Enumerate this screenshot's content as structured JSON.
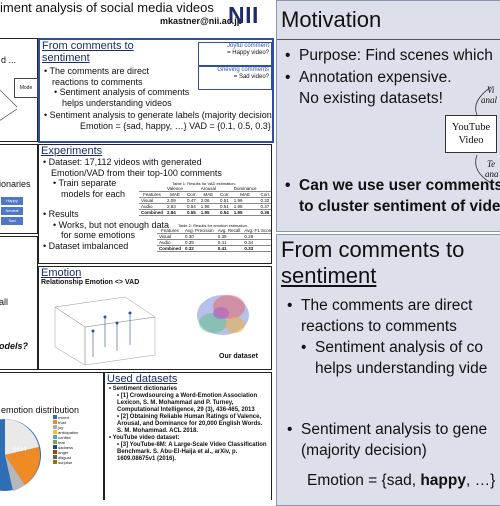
{
  "poster": {
    "title": "iment analysis of social media videos",
    "email": "mkastner@nii.ac.jp",
    "logo": "NII",
    "left_strip": {
      "top_text": "d ...",
      "mode_box": "Mode",
      "dictionaries_label": "ionaries",
      "dict_boxes": [
        "Happy",
        "Neutral",
        "Sad"
      ],
      "all_text": "all",
      "models_text": "odels?",
      "emotion_dist_label": "emotion distribution",
      "legend": [
        "mixed",
        "trust",
        "joy",
        "anticipation",
        "conflict",
        "fear",
        "sadness",
        "anger",
        "disgust",
        "surprise"
      ],
      "pie_value": "6614"
    },
    "comments": {
      "heading_line1": "From comments to",
      "heading_line2": "sentiment",
      "bullet1_l1": "The comments are direct",
      "bullet1_l2": "reactions to comments",
      "sub1_l1": "Sentiment analysis of comments",
      "sub1_l2": "helps understanding videos",
      "bullet2": "Sentiment analysis to generate labels (majority decision)",
      "formula": "Emotion = {sad, happy, …}    VAD = {0.1, 0.5, 0.3}",
      "joyful": "Joyful comment",
      "happy_q": "= Happy video?",
      "grieving": "Grieving comments",
      "sad_q": "= Sad video?"
    },
    "experiments": {
      "heading": "Experiments",
      "b1_l1": "Dataset: 17,112 videos with generated",
      "b1_l2": "Emotion/VAD from their top-100 comments",
      "sub_l1": "Train separate",
      "sub_l2": "models for each",
      "results": "Results",
      "sub2_l1": "Works, but not enough data",
      "sub2_l2": "for some emotions",
      "b3": "Dataset imbalanced",
      "table1_caption": "Table 1: Results for VAD estimation.",
      "table1_head": [
        "",
        "Valence",
        "",
        "Arousal",
        "",
        "Dominance",
        ""
      ],
      "table1_sub": [
        "Features",
        "MAE",
        "Corr.",
        "MAE",
        "Corr.",
        "MAE",
        "Corr."
      ],
      "table1_rows": [
        [
          "Visual",
          "2.09",
          "0.47",
          "2.06",
          "0.51",
          "1.96",
          "0.32"
        ],
        [
          "Audio",
          "2.83",
          "0.54",
          "1.96",
          "0.51",
          "1.96",
          "0.37"
        ],
        [
          "Combined",
          "2.84",
          "0.55",
          "1.95",
          "0.54",
          "1.95",
          "0.36"
        ]
      ],
      "table2_caption": "Table 2: Results for emotion estimation.",
      "table2_sub": [
        "Features",
        "Avg. Precision",
        "Avg. Recall",
        "Avg. F1 Score"
      ],
      "table2_rows": [
        [
          "Visual",
          "0.30",
          "0.39",
          "0.28"
        ],
        [
          "Audio",
          "0.39",
          "0.41",
          "0.34"
        ],
        [
          "Combined",
          "0.32",
          "0.41",
          "0.33"
        ]
      ]
    },
    "emotion": {
      "heading": "Emotion",
      "subheading": "Relationship Emotion <> VAD",
      "our_dataset": "Our dataset"
    },
    "used": {
      "heading": "Used datasets",
      "b1": "Sentiment dictionaries",
      "r1": "[1] Crowdsourcing a Word-Emotion Association Lexicon, S. M. Mohammad and P. Turney, Computational Intelligence, 29 (3), 436-465, 2013",
      "r2": "[2] Obtaining Reliable Human Ratings of Valence, Arousal, and Dominance for 20,000 English Words. S. M. Mohammad. ACL 2018.",
      "b2": "YouTube video dataset:",
      "r3": "[3] YouTube-8M: A Large-Scale Video Classification Benchmark. S. Abu-El-Haija et al., arXiv, p. 1609.08675v1 (2016)."
    }
  },
  "slide1": {
    "title": "Motivation",
    "b1": "Purpose: Find scenes which",
    "b2_l1": "Annotation expensive.",
    "b2_l2": "No existing datasets!",
    "yt_l1": "YouTube",
    "yt_l2": "Video",
    "curve_top": "Vi",
    "curve_top2": "anal",
    "curve_bot": "Te",
    "curve_bot2": "ana",
    "b3_l1": "Can we use user comments",
    "b3_l2": "to cluster sentiment of vide"
  },
  "slide2": {
    "title_l1": "From comments to",
    "title_l2": "sentiment",
    "b1_l1": "The comments are direct",
    "b1_l2": "reactions to comments",
    "sub_l1": "Sentiment analysis of co",
    "sub_l2": "helps understanding vide",
    "b2_l1": "Sentiment analysis to gene",
    "b2_l2": "(majority decision)",
    "formula_pre": "Emotion = {sad, ",
    "formula_bold": "happy",
    "formula_post": ", …}"
  },
  "colors": {
    "accent": "#1a2c6a",
    "slide_bg": "#dde0ea",
    "box_blue": "#2f4fa3",
    "pie_blue": "#2f6db5",
    "pie_orange": "#f08a24"
  }
}
